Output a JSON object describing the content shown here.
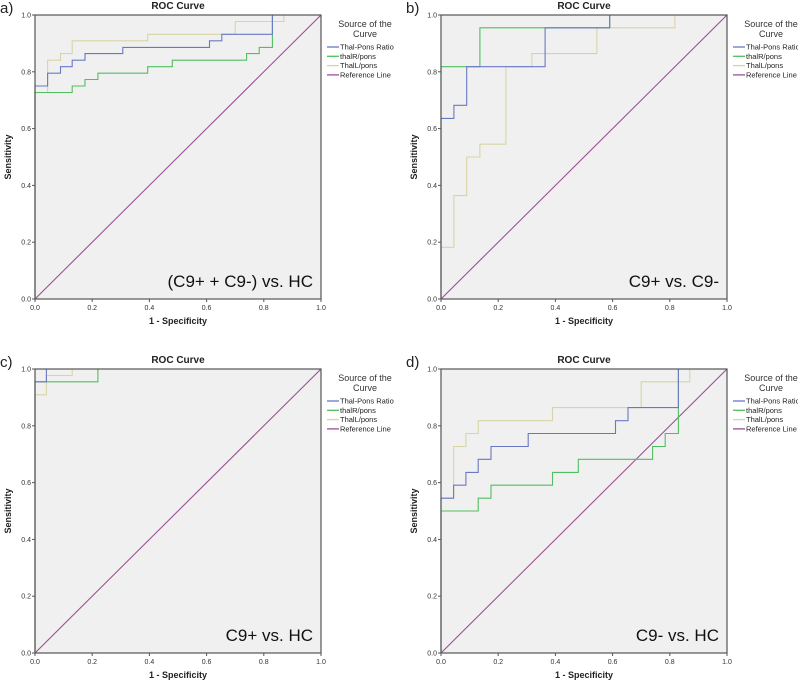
{
  "chart_data": [
    {
      "type": "line",
      "panel_label": "a)",
      "title": "ROC Curve",
      "xlabel": "1 - Specificity",
      "ylabel": "Sensitivity",
      "xlim": [
        0,
        1
      ],
      "ylim": [
        0,
        1
      ],
      "ticks": [
        "0.0",
        "0.2",
        "0.4",
        "0.6",
        "0.8",
        "1.0"
      ],
      "annotation": "(C9+ + C9-) vs. HC",
      "legend_title": [
        "Source of the",
        "Curve"
      ],
      "legend_position": "right",
      "series": [
        {
          "name": "Thal-Pons Ratio",
          "color": "#6a78c4",
          "points": [
            [
              0,
              0
            ],
            [
              0,
              0.75
            ],
            [
              0.044,
              0.75
            ],
            [
              0.044,
              0.795
            ],
            [
              0.089,
              0.795
            ],
            [
              0.089,
              0.818
            ],
            [
              0.13,
              0.818
            ],
            [
              0.13,
              0.841
            ],
            [
              0.175,
              0.841
            ],
            [
              0.175,
              0.864
            ],
            [
              0.307,
              0.864
            ],
            [
              0.307,
              0.886
            ],
            [
              0.61,
              0.886
            ],
            [
              0.61,
              0.909
            ],
            [
              0.653,
              0.909
            ],
            [
              0.653,
              0.932
            ],
            [
              0.83,
              0.932
            ],
            [
              0.83,
              1
            ],
            [
              1,
              1
            ]
          ]
        },
        {
          "name": "thalR/pons",
          "color": "#4fbf5f",
          "points": [
            [
              0,
              0
            ],
            [
              0,
              0.727
            ],
            [
              0.13,
              0.727
            ],
            [
              0.13,
              0.75
            ],
            [
              0.175,
              0.75
            ],
            [
              0.175,
              0.773
            ],
            [
              0.22,
              0.773
            ],
            [
              0.22,
              0.795
            ],
            [
              0.394,
              0.795
            ],
            [
              0.394,
              0.818
            ],
            [
              0.48,
              0.818
            ],
            [
              0.48,
              0.841
            ],
            [
              0.74,
              0.841
            ],
            [
              0.74,
              0.864
            ],
            [
              0.784,
              0.864
            ],
            [
              0.784,
              0.886
            ],
            [
              0.83,
              0.886
            ],
            [
              0.83,
              1
            ],
            [
              1,
              1
            ]
          ]
        },
        {
          "name": "ThalL/pons",
          "color": "#d8d4a4",
          "points": [
            [
              0,
              0
            ],
            [
              0,
              0.727
            ],
            [
              0.044,
              0.727
            ],
            [
              0.044,
              0.841
            ],
            [
              0.089,
              0.841
            ],
            [
              0.089,
              0.864
            ],
            [
              0.13,
              0.864
            ],
            [
              0.13,
              0.909
            ],
            [
              0.394,
              0.909
            ],
            [
              0.394,
              0.932
            ],
            [
              0.7,
              0.932
            ],
            [
              0.7,
              0.977
            ],
            [
              0.87,
              0.977
            ],
            [
              0.87,
              1
            ],
            [
              1,
              1
            ]
          ]
        },
        {
          "name": "Reference Line",
          "color": "#9c4f98",
          "points": [
            [
              0,
              0
            ],
            [
              1,
              1
            ]
          ]
        }
      ]
    },
    {
      "type": "line",
      "panel_label": "b)",
      "title": "ROC Curve",
      "xlabel": "1 - Specificity",
      "ylabel": "Sensitivity",
      "xlim": [
        0,
        1
      ],
      "ylim": [
        0,
        1
      ],
      "ticks": [
        "0.0",
        "0.2",
        "0.4",
        "0.6",
        "0.8",
        "1.0"
      ],
      "annotation": "C9+ vs. C9-",
      "legend_title": [
        "Source of the",
        "Curve"
      ],
      "legend_position": "right",
      "series": [
        {
          "name": "Thal-Pons Ratio",
          "color": "#6a78c4",
          "points": [
            [
              0,
              0
            ],
            [
              0,
              0.636
            ],
            [
              0.045,
              0.636
            ],
            [
              0.045,
              0.682
            ],
            [
              0.09,
              0.682
            ],
            [
              0.09,
              0.818
            ],
            [
              0.364,
              0.818
            ],
            [
              0.364,
              0.955
            ],
            [
              0.59,
              0.955
            ],
            [
              0.59,
              1
            ],
            [
              1,
              1
            ]
          ]
        },
        {
          "name": "thalR/pons",
          "color": "#4fbf5f",
          "points": [
            [
              0,
              0
            ],
            [
              0,
              0.818
            ],
            [
              0.136,
              0.818
            ],
            [
              0.136,
              0.955
            ],
            [
              0.59,
              0.955
            ],
            [
              0.59,
              1
            ],
            [
              1,
              1
            ]
          ]
        },
        {
          "name": "ThalL/pons",
          "color": "#d8d4a4",
          "points": [
            [
              0,
              0
            ],
            [
              0,
              0.182
            ],
            [
              0.045,
              0.182
            ],
            [
              0.045,
              0.364
            ],
            [
              0.09,
              0.364
            ],
            [
              0.09,
              0.5
            ],
            [
              0.136,
              0.5
            ],
            [
              0.136,
              0.545
            ],
            [
              0.227,
              0.545
            ],
            [
              0.227,
              0.818
            ],
            [
              0.318,
              0.818
            ],
            [
              0.318,
              0.864
            ],
            [
              0.545,
              0.864
            ],
            [
              0.545,
              0.955
            ],
            [
              0.818,
              0.955
            ],
            [
              0.818,
              1
            ],
            [
              1,
              1
            ]
          ]
        },
        {
          "name": "Reference Line",
          "color": "#9c4f98",
          "points": [
            [
              0,
              0
            ],
            [
              1,
              1
            ]
          ]
        }
      ]
    },
    {
      "type": "line",
      "panel_label": "c)",
      "title": "ROC Curve",
      "xlabel": "1 - Specificity",
      "ylabel": "Sensitivity",
      "xlim": [
        0,
        1
      ],
      "ylim": [
        0,
        1
      ],
      "ticks": [
        "0.0",
        "0.2",
        "0.4",
        "0.6",
        "0.8",
        "1.0"
      ],
      "annotation": "C9+ vs. HC",
      "legend_title": [
        "Source of the",
        "Curve"
      ],
      "legend_position": "right",
      "series": [
        {
          "name": "Thal-Pons Ratio",
          "color": "#6a78c4",
          "points": [
            [
              0,
              0
            ],
            [
              0,
              0.955
            ],
            [
              0.04,
              0.955
            ],
            [
              0.04,
              1
            ],
            [
              1,
              1
            ]
          ]
        },
        {
          "name": "thalR/pons",
          "color": "#4fbf5f",
          "points": [
            [
              0,
              0
            ],
            [
              0,
              0.955
            ],
            [
              0.22,
              0.955
            ],
            [
              0.22,
              1
            ],
            [
              1,
              1
            ]
          ]
        },
        {
          "name": "ThalL/pons",
          "color": "#d8d4a4",
          "points": [
            [
              0,
              0
            ],
            [
              0,
              0.909
            ],
            [
              0.04,
              0.909
            ],
            [
              0.04,
              0.977
            ],
            [
              0.13,
              0.977
            ],
            [
              0.13,
              1
            ],
            [
              1,
              1
            ]
          ]
        },
        {
          "name": "Reference Line",
          "color": "#9c4f98",
          "points": [
            [
              0,
              0
            ],
            [
              1,
              1
            ]
          ]
        }
      ]
    },
    {
      "type": "line",
      "panel_label": "d)",
      "title": "ROC Curve",
      "xlabel": "1 - Specificity",
      "ylabel": "Sensitivity",
      "xlim": [
        0,
        1
      ],
      "ylim": [
        0,
        1
      ],
      "ticks": [
        "0.0",
        "0.2",
        "0.4",
        "0.6",
        "0.8",
        "1.0"
      ],
      "annotation": "C9- vs. HC",
      "legend_title": [
        "Source of the",
        "Curve"
      ],
      "legend_position": "right",
      "series": [
        {
          "name": "Thal-Pons Ratio",
          "color": "#6a78c4",
          "points": [
            [
              0,
              0
            ],
            [
              0,
              0.545
            ],
            [
              0.044,
              0.545
            ],
            [
              0.044,
              0.591
            ],
            [
              0.087,
              0.591
            ],
            [
              0.087,
              0.636
            ],
            [
              0.13,
              0.636
            ],
            [
              0.13,
              0.682
            ],
            [
              0.175,
              0.682
            ],
            [
              0.175,
              0.727
            ],
            [
              0.305,
              0.727
            ],
            [
              0.305,
              0.773
            ],
            [
              0.61,
              0.773
            ],
            [
              0.61,
              0.818
            ],
            [
              0.654,
              0.818
            ],
            [
              0.654,
              0.864
            ],
            [
              0.83,
              0.864
            ],
            [
              0.83,
              1
            ],
            [
              1,
              1
            ]
          ]
        },
        {
          "name": "thalR/pons",
          "color": "#4fbf5f",
          "points": [
            [
              0,
              0
            ],
            [
              0,
              0.5
            ],
            [
              0.13,
              0.5
            ],
            [
              0.13,
              0.545
            ],
            [
              0.175,
              0.545
            ],
            [
              0.175,
              0.591
            ],
            [
              0.39,
              0.591
            ],
            [
              0.39,
              0.636
            ],
            [
              0.48,
              0.636
            ],
            [
              0.48,
              0.682
            ],
            [
              0.74,
              0.682
            ],
            [
              0.74,
              0.727
            ],
            [
              0.784,
              0.727
            ],
            [
              0.784,
              0.773
            ],
            [
              0.83,
              0.773
            ],
            [
              0.83,
              1
            ],
            [
              1,
              1
            ]
          ]
        },
        {
          "name": "ThalL/pons",
          "color": "#d8d4a4",
          "points": [
            [
              0,
              0
            ],
            [
              0,
              0.545
            ],
            [
              0.044,
              0.545
            ],
            [
              0.044,
              0.727
            ],
            [
              0.087,
              0.727
            ],
            [
              0.087,
              0.773
            ],
            [
              0.13,
              0.773
            ],
            [
              0.13,
              0.818
            ],
            [
              0.39,
              0.818
            ],
            [
              0.39,
              0.864
            ],
            [
              0.7,
              0.864
            ],
            [
              0.7,
              0.955
            ],
            [
              0.87,
              0.955
            ],
            [
              0.87,
              1
            ],
            [
              1,
              1
            ]
          ]
        },
        {
          "name": "Reference Line",
          "color": "#9c4f98",
          "points": [
            [
              0,
              0
            ],
            [
              1,
              1
            ]
          ]
        }
      ]
    }
  ]
}
